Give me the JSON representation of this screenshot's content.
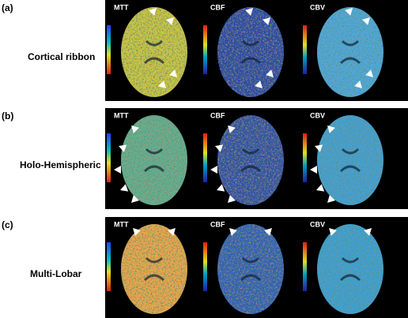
{
  "rows": [
    {
      "letter": "(a)",
      "title": "Cortical ribbon",
      "panels": [
        "MTT",
        "CBF",
        "CBV"
      ]
    },
    {
      "letter": "(b)",
      "title": "Holo-Hemispheric",
      "panels": [
        "MTT",
        "CBF",
        "CBV"
      ]
    },
    {
      "letter": "(c)",
      "title": "Multi-Lobar",
      "panels": [
        "MTT",
        "CBF",
        "CBV"
      ]
    }
  ]
}
